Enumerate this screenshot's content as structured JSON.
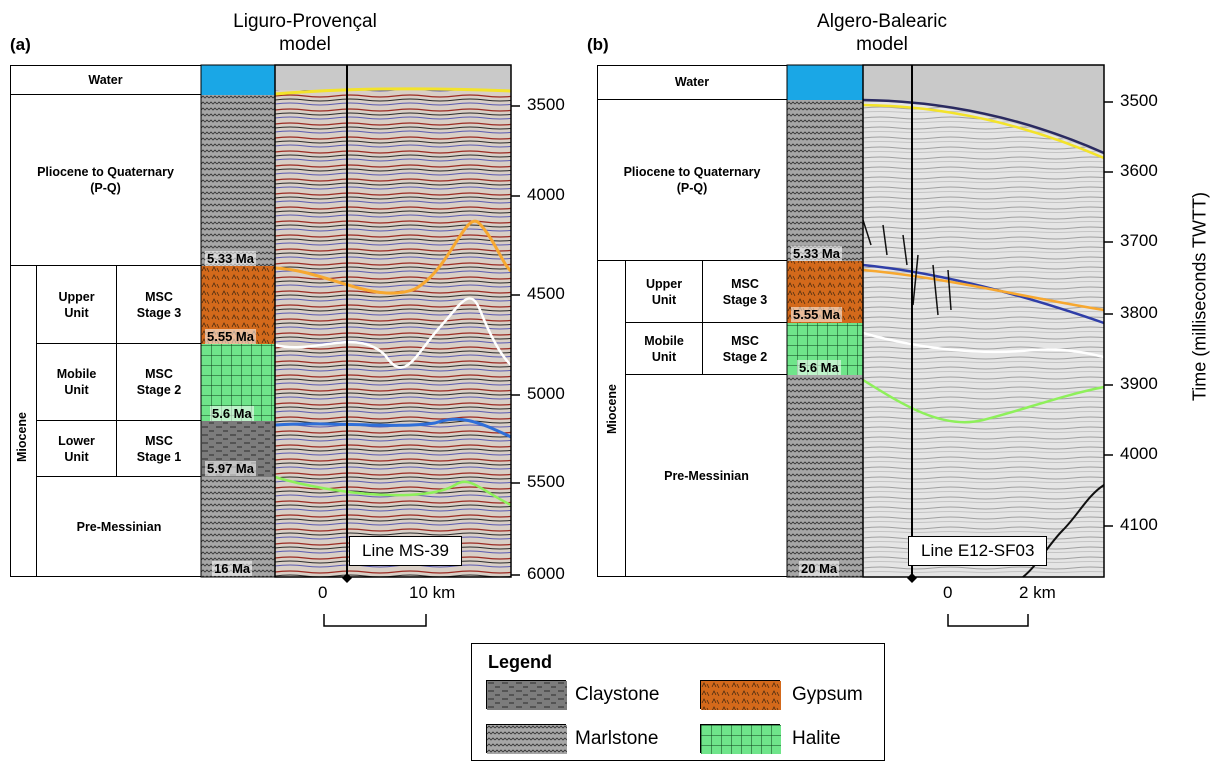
{
  "panel_a": {
    "label": "(a)",
    "title": "Liguro-Provençal\nmodel",
    "table": {
      "water": "Water",
      "pq": "Pliocene to Quaternary\n(P-Q)",
      "miocene": "Miocene",
      "upper_unit": "Upper\nUnit",
      "upper_stage": "MSC\nStage 3",
      "mobile_unit": "Mobile\nUnit",
      "mobile_stage": "MSC\nStage 2",
      "lower_unit": "Lower\nUnit",
      "lower_stage": "MSC\nStage 1",
      "premessinian": "Pre-Messinian"
    },
    "ages": [
      "5.33 Ma",
      "5.55 Ma",
      "5.6 Ma",
      "5.97 Ma",
      "16 Ma"
    ],
    "line_label": "Line MS-39",
    "ticks": [
      "3500",
      "4000",
      "4500",
      "5000",
      "5500",
      "6000"
    ],
    "scale_start": "0",
    "scale_end": "10 km"
  },
  "panel_b": {
    "label": "(b)",
    "title": "Algero-Balearic\nmodel",
    "table": {
      "water": "Water",
      "pq": "Pliocene to Quaternary\n(P-Q)",
      "miocene": "Miocene",
      "upper_unit": "Upper\nUnit",
      "upper_stage": "MSC\nStage 3",
      "mobile_unit": "Mobile\nUnit",
      "mobile_stage": "MSC\nStage 2",
      "premessinian": "Pre-Messinian"
    },
    "ages": [
      "5.33 Ma",
      "5.55 Ma",
      "5.6 Ma",
      "20 Ma"
    ],
    "line_label": "Line E12-SF03",
    "ticks": [
      "3500",
      "3600",
      "3700",
      "3800",
      "3900",
      "4000",
      "4100"
    ],
    "scale_start": "0",
    "scale_end": "2 km",
    "y_axis_title": "Time (milliseconds TWTT)"
  },
  "legend": {
    "title": "Legend",
    "items": [
      "Claystone",
      "Gypsum",
      "Marlstone",
      "Halite"
    ]
  },
  "colors": {
    "water": "#1aa7e6",
    "gypsum": "#d3691b",
    "halite": "#6fe58a",
    "claystone": "#7c7c7c",
    "marlstone": "#a8a8a8",
    "yellow_horizon": "#f3e32a",
    "orange_horizon": "#f7a830",
    "blue_horizon": "#2f6fd8",
    "green_horizon": "#8ef05a"
  }
}
